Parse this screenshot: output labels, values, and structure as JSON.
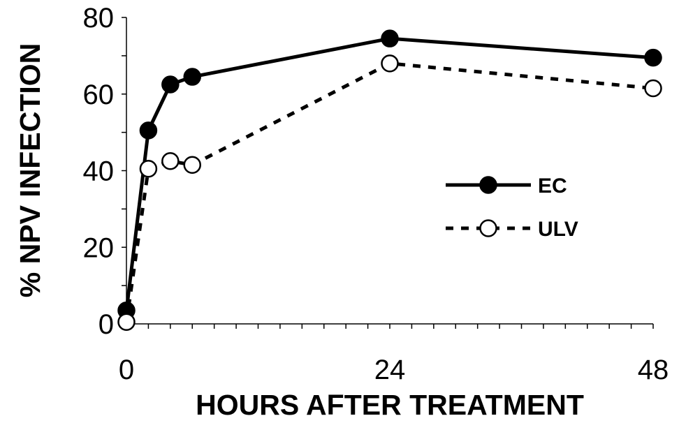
{
  "chart_data": {
    "type": "line",
    "xlabel": "HOURS AFTER TREATMENT",
    "ylabel": "% NPV INFECTION",
    "xlim": [
      0,
      48
    ],
    "ylim": [
      0,
      80
    ],
    "x_ticks": [
      0,
      24,
      48
    ],
    "y_ticks": [
      0,
      20,
      40,
      60,
      80
    ],
    "x_tick_labels": [
      "0",
      "24",
      "48"
    ],
    "y_tick_labels": [
      "0",
      "20",
      "40",
      "60",
      "80"
    ],
    "x_minor_tick_step": 2,
    "y_minor_tick_step": 10,
    "grid": false,
    "legend_position": "right",
    "series": [
      {
        "name": "EC",
        "style": "solid",
        "marker": "filled-circle",
        "color": "#000000",
        "x": [
          0,
          2,
          4,
          6,
          24,
          48
        ],
        "y": [
          3.5,
          50.5,
          62.5,
          64.5,
          74.5,
          69.5
        ]
      },
      {
        "name": "ULV",
        "style": "dashed",
        "marker": "open-circle",
        "color": "#000000",
        "x": [
          0,
          2,
          4,
          6,
          24,
          48
        ],
        "y": [
          0.5,
          40.5,
          42.5,
          41.5,
          68,
          61.5
        ]
      }
    ]
  }
}
